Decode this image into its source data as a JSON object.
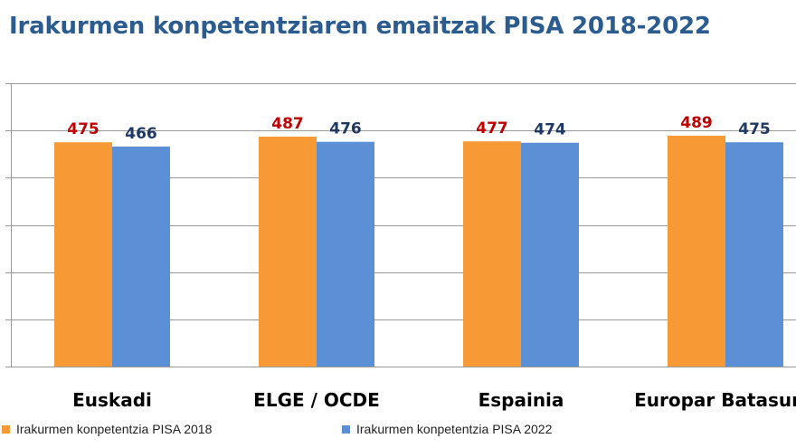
{
  "title": "Irakurmen konpetentziaren emaitzak PISA 2018-2022",
  "colors": {
    "series_2018": "#f79a35",
    "series_2022": "#5b8fd6",
    "label_2018": "#c00000",
    "label_2022": "#1f3864",
    "grid": "#9a9a9a",
    "title": "#2c5c8f"
  },
  "chart_data": {
    "type": "bar",
    "title": "Irakurmen konpetentziaren emaitzak PISA 2018-2022",
    "categories": [
      "Euskadi",
      "ELGE / OCDE",
      "Espainia",
      "Europar Batasuna"
    ],
    "series": [
      {
        "name": "Irakurmen konpetentzia PISA 2018",
        "values": [
          475,
          487,
          477,
          489
        ]
      },
      {
        "name": "Irakurmen konpetentzia PISA 2022",
        "values": [
          466,
          476,
          474,
          475
        ]
      }
    ],
    "ylim": [
      0,
      600
    ],
    "grid": true,
    "legend": "bottom",
    "xlabel": "",
    "ylabel": ""
  }
}
